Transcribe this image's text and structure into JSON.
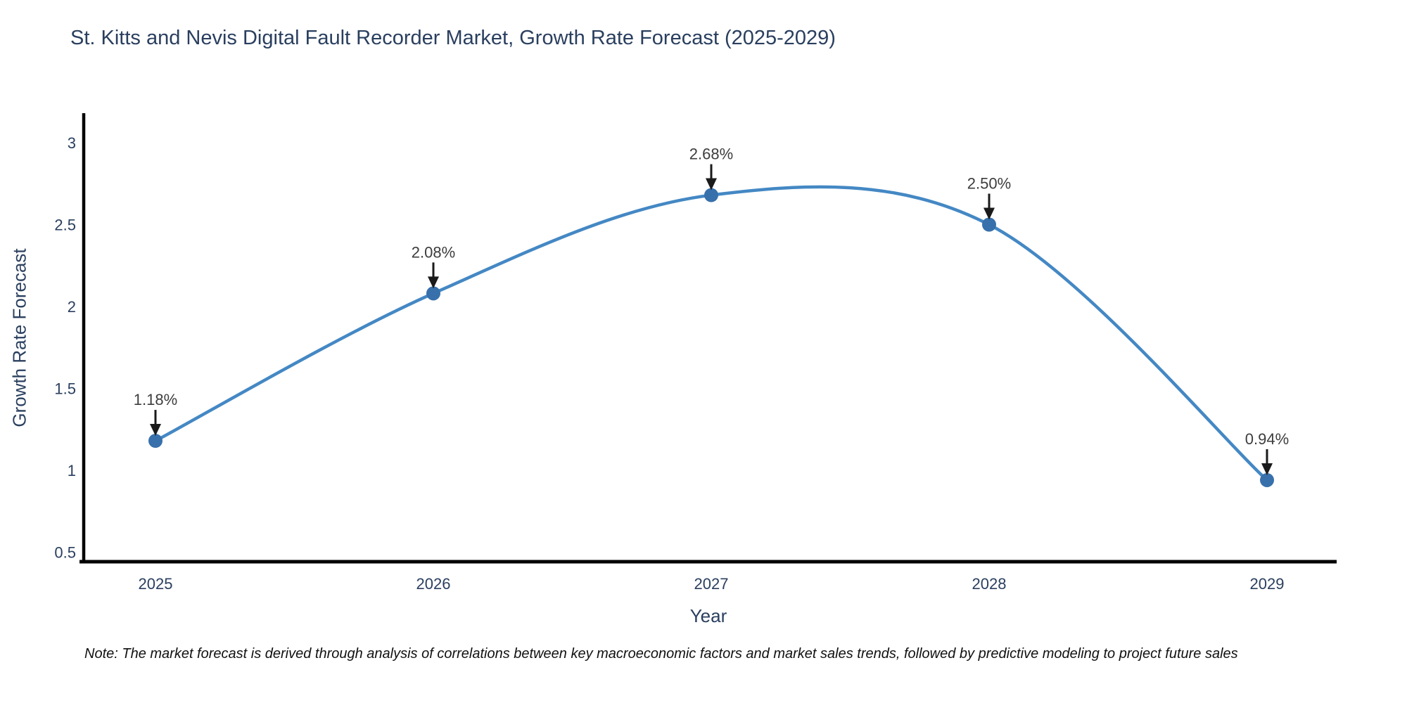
{
  "title": "St. Kitts and Nevis Digital Fault Recorder Market, Growth Rate Forecast (2025-2029)",
  "note": "Note: The market forecast is derived through analysis of correlations between key macroeconomic factors and market sales trends, followed by predictive modeling to project future sales",
  "chart_data": {
    "type": "line",
    "title": "St. Kitts and Nevis Digital Fault Recorder Market, Growth Rate Forecast (2025-2029)",
    "xlabel": "Year",
    "ylabel": "Growth Rate Forecast",
    "x": [
      2025,
      2026,
      2027,
      2028,
      2029
    ],
    "values": [
      1.18,
      2.08,
      2.68,
      2.5,
      0.94
    ],
    "point_labels": [
      "1.18%",
      "2.08%",
      "2.68%",
      "2.50%",
      "0.94%"
    ],
    "x_tick_labels": [
      "2025",
      "2026",
      "2027",
      "2028",
      "2029"
    ],
    "y_ticks": [
      3,
      2.5,
      2,
      1.5,
      1,
      0.5
    ],
    "y_tick_labels": [
      "3",
      "2.5",
      "2",
      "1.5",
      "1",
      "0.5"
    ],
    "xlim": [
      2024.73,
      2029.25
    ],
    "ylim": [
      0.42,
      3.2
    ],
    "line_shape": "spline",
    "grid": false,
    "legend_position": "none",
    "colors": {
      "line": "#4488c4",
      "marker": "#3870ab",
      "axis": "#000000",
      "axis_text": "#2a3f5f",
      "annotation_text": "#3d3d3d",
      "arrow": "#1a1a1a",
      "background": "#ffffff"
    }
  }
}
